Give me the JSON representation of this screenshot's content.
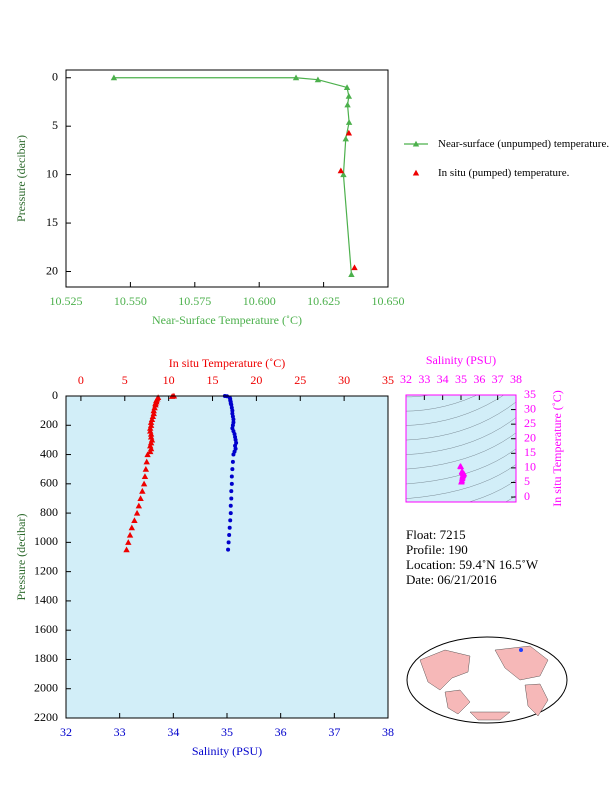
{
  "chart_data": [
    {
      "type": "line",
      "xlabel": "Near-Surface Temperature (˚C)",
      "ylabel": "Pressure (decibar)",
      "xlim": [
        10.525,
        10.65
      ],
      "xticks": [
        10.525,
        {
          "value": 10.55,
          "label": "10.550"
        },
        10.575,
        {
          "value": 10.6,
          "label": "10.600"
        },
        10.625,
        {
          "value": 10.65,
          "label": "10.650"
        }
      ],
      "ylim": [
        -0.8,
        21.6
      ],
      "yticks": [
        0,
        5,
        10,
        15,
        20
      ],
      "y_inverted": true,
      "legend": "right",
      "series": [
        {
          "name": "Near-surface (unpumped) temperature.",
          "color": "#4cb04c",
          "marker": "triangle",
          "line": true,
          "x": [
            10.5436,
            10.6143,
            10.6228,
            10.6341,
            10.6348,
            10.6343,
            10.6349,
            10.6336,
            10.6327,
            10.6358
          ],
          "y": [
            0,
            0,
            0.2,
            1.0,
            1.9,
            2.8,
            4.6,
            6.3,
            10.0,
            20.3
          ]
        },
        {
          "name": "In situ (pumped) temperature.",
          "color": "#ee0000",
          "marker": "triangle",
          "line": false,
          "x": [
            10.6348,
            10.6317,
            10.637
          ],
          "y": [
            5.7,
            9.6,
            19.6
          ]
        }
      ]
    },
    {
      "type": "scatter",
      "xlabel": "Salinity (PSU)",
      "x2label": "In situ Temperature (˚C)",
      "ylabel": "Pressure (decibar)",
      "xlim": [
        32,
        38
      ],
      "xticks": [
        32,
        33,
        34,
        35,
        36,
        37,
        38
      ],
      "x2lim": [
        -1.7,
        35
      ],
      "x2ticks": [
        0,
        5,
        10,
        15,
        20,
        25,
        30,
        35
      ],
      "ylim": [
        0,
        2200
      ],
      "yticks": [
        0,
        200,
        400,
        600,
        800,
        1000,
        1200,
        1400,
        1600,
        1800,
        2000,
        2200
      ],
      "y_inverted": true,
      "background": "#d2eef8",
      "series": [
        {
          "color": "#ee0000",
          "marker": "triangle",
          "axis": "x2",
          "x": [
            10.6,
            10.4,
            8.8,
            8.7,
            8.6,
            8.6,
            8.5,
            8.5,
            8.4,
            8.3,
            8.3,
            8.2,
            8.1,
            8.0,
            8.0,
            7.9,
            7.9,
            8.0,
            8.0,
            8.1,
            8.0,
            7.9,
            8.0,
            7.9,
            7.6,
            7.5,
            7.4,
            7.3,
            7.2,
            7.0,
            6.8,
            6.6,
            6.4,
            6.1,
            5.8,
            5.6,
            5.4,
            5.2
          ],
          "y": [
            0,
            2,
            10,
            20,
            30,
            40,
            50,
            60,
            80,
            100,
            120,
            140,
            160,
            180,
            200,
            220,
            240,
            260,
            280,
            300,
            320,
            340,
            360,
            380,
            400,
            450,
            500,
            550,
            600,
            650,
            700,
            750,
            800,
            850,
            900,
            950,
            1000,
            1050
          ]
        },
        {
          "color": "#0000cc",
          "marker": "circle",
          "axis": "x",
          "x": [
            34.96,
            35.0,
            35.05,
            35.06,
            35.06,
            35.07,
            35.07,
            35.08,
            35.09,
            35.1,
            35.1,
            35.11,
            35.12,
            35.12,
            35.11,
            35.1,
            35.12,
            35.14,
            35.15,
            35.16,
            35.17,
            35.15,
            35.16,
            35.14,
            35.12,
            35.11,
            35.1,
            35.09,
            35.09,
            35.08,
            35.08,
            35.07,
            35.07,
            35.06,
            35.05,
            35.04,
            35.03,
            35.02
          ],
          "y": [
            0,
            2,
            10,
            20,
            30,
            40,
            50,
            60,
            80,
            100,
            120,
            140,
            160,
            180,
            200,
            220,
            240,
            260,
            280,
            300,
            320,
            340,
            360,
            380,
            400,
            450,
            500,
            550,
            600,
            650,
            700,
            750,
            800,
            850,
            900,
            950,
            1000,
            1050
          ]
        }
      ]
    },
    {
      "type": "scatter",
      "xlabel": "Salinity (PSU)",
      "ylabel": "In situ Temperature (˚C)",
      "xlim": [
        32,
        38
      ],
      "xticks": [
        32,
        33,
        34,
        35,
        36,
        37,
        38
      ],
      "ylim": [
        -1.7,
        35
      ],
      "yticks": [
        0,
        5,
        10,
        15,
        20,
        25,
        30,
        35
      ],
      "y_inverted": false,
      "series": [
        {
          "color": "#ff00ff",
          "marker": "triangle",
          "x": [
            34.96,
            35.0,
            35.05,
            35.06,
            35.07,
            35.08,
            35.1,
            35.12,
            35.12,
            35.15,
            35.16,
            35.14,
            35.12,
            35.1,
            35.09,
            35.08,
            35.07,
            35.05,
            35.03,
            35.02
          ],
          "y": [
            10.6,
            10.4,
            8.8,
            8.6,
            8.5,
            8.5,
            8.3,
            8.1,
            8.0,
            8.0,
            8.0,
            7.9,
            7.6,
            7.4,
            7.2,
            6.8,
            6.4,
            5.8,
            5.4,
            5.2
          ]
        }
      ]
    }
  ],
  "info": [
    "Float:  7215",
    "Profile:  190",
    "Location:  59.4˚N  16.5˚W",
    "Date:  06/21/2016"
  ]
}
